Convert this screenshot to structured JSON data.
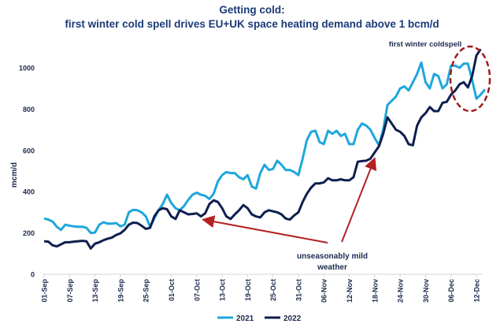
{
  "chart_data": {
    "type": "line",
    "title": "Getting cold:",
    "subtitle": "first winter cold spell drives EU+UK space heating demand above 1 bcm/d",
    "xlabel": "",
    "ylabel": "mcm/d",
    "ylim": [
      0,
      1100
    ],
    "yticks": [
      0,
      200,
      400,
      600,
      800,
      1000
    ],
    "x_unit": "days since 01-Sep",
    "xticks": [
      {
        "day": 0,
        "label": "01-Sep"
      },
      {
        "day": 6,
        "label": "07-Sep"
      },
      {
        "day": 12,
        "label": "13-Sep"
      },
      {
        "day": 18,
        "label": "19-Sep"
      },
      {
        "day": 24,
        "label": "25-Sep"
      },
      {
        "day": 30,
        "label": "01-Oct"
      },
      {
        "day": 36,
        "label": "07-Oct"
      },
      {
        "day": 42,
        "label": "13-Oct"
      },
      {
        "day": 48,
        "label": "19-Oct"
      },
      {
        "day": 54,
        "label": "25-Oct"
      },
      {
        "day": 60,
        "label": "31-Oct"
      },
      {
        "day": 66,
        "label": "06-Nov"
      },
      {
        "day": 72,
        "label": "12-Nov"
      },
      {
        "day": 78,
        "label": "18-Nov"
      },
      {
        "day": 84,
        "label": "24-Nov"
      },
      {
        "day": 90,
        "label": "30-Nov"
      },
      {
        "day": 96,
        "label": "06-Dec"
      },
      {
        "day": 102,
        "label": "12-Dec"
      }
    ],
    "grid": false,
    "legend_position": "bottom",
    "series": [
      {
        "name": "2021",
        "color": "#1ea7dc",
        "points": [
          [
            0,
            270
          ],
          [
            1,
            265
          ],
          [
            2,
            255
          ],
          [
            3,
            230
          ],
          [
            4,
            215
          ],
          [
            5,
            240
          ],
          [
            6,
            235
          ],
          [
            7,
            232
          ],
          [
            8,
            230
          ],
          [
            9,
            230
          ],
          [
            10,
            225
          ],
          [
            11,
            200
          ],
          [
            12,
            202
          ],
          [
            13,
            240
          ],
          [
            14,
            252
          ],
          [
            15,
            245
          ],
          [
            16,
            245
          ],
          [
            17,
            248
          ],
          [
            18,
            232
          ],
          [
            19,
            240
          ],
          [
            20,
            300
          ],
          [
            21,
            312
          ],
          [
            22,
            310
          ],
          [
            23,
            300
          ],
          [
            24,
            280
          ],
          [
            25,
            230
          ],
          [
            26,
            270
          ],
          [
            27,
            310
          ],
          [
            28,
            340
          ],
          [
            29,
            385
          ],
          [
            30,
            345
          ],
          [
            31,
            320
          ],
          [
            32,
            310
          ],
          [
            33,
            330
          ],
          [
            34,
            360
          ],
          [
            35,
            385
          ],
          [
            36,
            395
          ],
          [
            37,
            385
          ],
          [
            38,
            380
          ],
          [
            39,
            365
          ],
          [
            40,
            390
          ],
          [
            41,
            450
          ],
          [
            42,
            480
          ],
          [
            43,
            495
          ],
          [
            44,
            490
          ],
          [
            45,
            490
          ],
          [
            46,
            470
          ],
          [
            47,
            460
          ],
          [
            48,
            480
          ],
          [
            49,
            425
          ],
          [
            50,
            415
          ],
          [
            51,
            490
          ],
          [
            52,
            530
          ],
          [
            53,
            505
          ],
          [
            54,
            510
          ],
          [
            55,
            550
          ],
          [
            56,
            530
          ],
          [
            57,
            505
          ],
          [
            58,
            505
          ],
          [
            59,
            495
          ],
          [
            60,
            480
          ],
          [
            61,
            560
          ],
          [
            62,
            650
          ],
          [
            63,
            690
          ],
          [
            64,
            695
          ],
          [
            65,
            640
          ],
          [
            66,
            630
          ],
          [
            67,
            695
          ],
          [
            68,
            680
          ],
          [
            69,
            695
          ],
          [
            70,
            670
          ],
          [
            71,
            680
          ],
          [
            72,
            630
          ],
          [
            73,
            630
          ],
          [
            74,
            700
          ],
          [
            75,
            730
          ],
          [
            76,
            720
          ],
          [
            77,
            700
          ],
          [
            78,
            660
          ],
          [
            79,
            625
          ],
          [
            80,
            700
          ],
          [
            81,
            820
          ],
          [
            82,
            840
          ],
          [
            83,
            860
          ],
          [
            84,
            900
          ],
          [
            85,
            910
          ],
          [
            86,
            890
          ],
          [
            87,
            930
          ],
          [
            88,
            970
          ],
          [
            89,
            1025
          ],
          [
            90,
            930
          ],
          [
            91,
            900
          ],
          [
            92,
            970
          ],
          [
            93,
            960
          ],
          [
            94,
            900
          ],
          [
            95,
            920
          ],
          [
            96,
            1010
          ],
          [
            97,
            1010
          ],
          [
            98,
            1000
          ],
          [
            99,
            1020
          ],
          [
            100,
            1020
          ],
          [
            101,
            940
          ],
          [
            102,
            850
          ],
          [
            103,
            870
          ],
          [
            104,
            895
          ]
        ]
      },
      {
        "name": "2022",
        "color": "#0e1e4e",
        "points": [
          [
            0,
            160
          ],
          [
            1,
            158
          ],
          [
            2,
            140
          ],
          [
            3,
            135
          ],
          [
            4,
            145
          ],
          [
            5,
            155
          ],
          [
            6,
            155
          ],
          [
            7,
            158
          ],
          [
            8,
            160
          ],
          [
            9,
            162
          ],
          [
            10,
            160
          ],
          [
            11,
            125
          ],
          [
            12,
            148
          ],
          [
            13,
            155
          ],
          [
            14,
            165
          ],
          [
            15,
            172
          ],
          [
            16,
            178
          ],
          [
            17,
            190
          ],
          [
            18,
            198
          ],
          [
            19,
            215
          ],
          [
            20,
            240
          ],
          [
            21,
            250
          ],
          [
            22,
            248
          ],
          [
            23,
            235
          ],
          [
            24,
            220
          ],
          [
            25,
            225
          ],
          [
            26,
            280
          ],
          [
            27,
            310
          ],
          [
            28,
            320
          ],
          [
            29,
            315
          ],
          [
            30,
            280
          ],
          [
            31,
            268
          ],
          [
            32,
            310
          ],
          [
            33,
            300
          ],
          [
            34,
            290
          ],
          [
            35,
            292
          ],
          [
            36,
            295
          ],
          [
            37,
            280
          ],
          [
            38,
            295
          ],
          [
            39,
            340
          ],
          [
            40,
            358
          ],
          [
            41,
            350
          ],
          [
            42,
            320
          ],
          [
            43,
            280
          ],
          [
            44,
            268
          ],
          [
            45,
            290
          ],
          [
            46,
            310
          ],
          [
            47,
            335
          ],
          [
            48,
            320
          ],
          [
            49,
            290
          ],
          [
            50,
            280
          ],
          [
            51,
            275
          ],
          [
            52,
            300
          ],
          [
            53,
            310
          ],
          [
            54,
            305
          ],
          [
            55,
            300
          ],
          [
            56,
            290
          ],
          [
            57,
            270
          ],
          [
            58,
            265
          ],
          [
            59,
            285
          ],
          [
            60,
            300
          ],
          [
            61,
            350
          ],
          [
            62,
            390
          ],
          [
            63,
            420
          ],
          [
            64,
            440
          ],
          [
            65,
            440
          ],
          [
            66,
            445
          ],
          [
            67,
            465
          ],
          [
            68,
            455
          ],
          [
            69,
            455
          ],
          [
            70,
            460
          ],
          [
            71,
            455
          ],
          [
            72,
            455
          ],
          [
            73,
            470
          ],
          [
            74,
            545
          ],
          [
            75,
            548
          ],
          [
            76,
            550
          ],
          [
            77,
            560
          ],
          [
            78,
            590
          ],
          [
            79,
            620
          ],
          [
            80,
            680
          ],
          [
            81,
            760
          ],
          [
            82,
            730
          ],
          [
            83,
            700
          ],
          [
            84,
            690
          ],
          [
            85,
            670
          ],
          [
            86,
            630
          ],
          [
            87,
            625
          ],
          [
            88,
            720
          ],
          [
            89,
            760
          ],
          [
            90,
            780
          ],
          [
            91,
            810
          ],
          [
            92,
            790
          ],
          [
            93,
            790
          ],
          [
            94,
            830
          ],
          [
            95,
            835
          ],
          [
            96,
            870
          ],
          [
            97,
            890
          ],
          [
            98,
            920
          ],
          [
            99,
            930
          ],
          [
            100,
            905
          ],
          [
            101,
            960
          ],
          [
            102,
            1060
          ],
          [
            103,
            1090
          ]
        ]
      }
    ],
    "annotations": {
      "coldspell": "first winter coldspell",
      "mild_line1": "unseasonably mild",
      "mild_line2": "weather"
    },
    "annotation_color": "#b22222"
  }
}
